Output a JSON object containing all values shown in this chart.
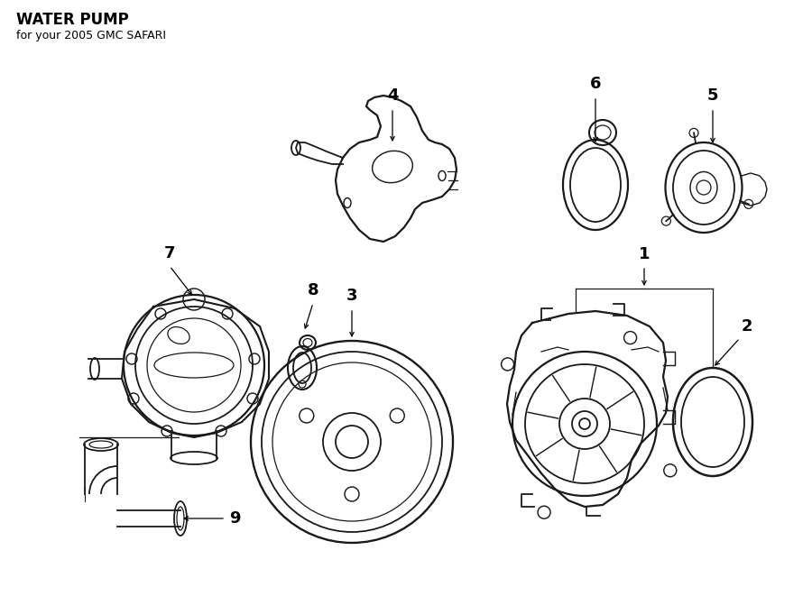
{
  "title": "WATER PUMP",
  "subtitle": "for your 2005 GMC SAFARI",
  "background_color": "#ffffff",
  "line_color": "#1a1a1a",
  "lw": 1.3,
  "label_fontsize": 13,
  "title_fontsize": 12,
  "subtitle_fontsize": 9,
  "figw": 9.0,
  "figh": 6.61,
  "dpi": 100
}
